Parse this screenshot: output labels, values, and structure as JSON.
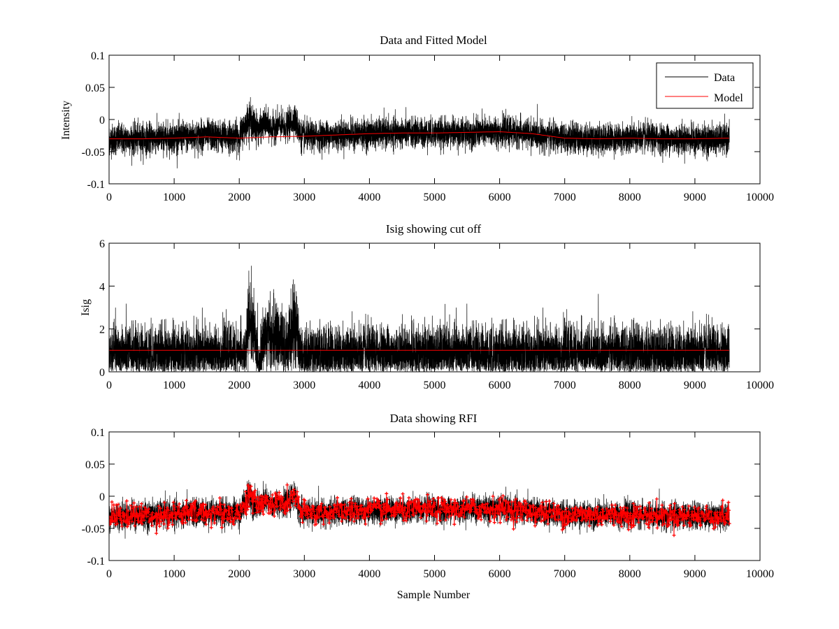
{
  "figure": {
    "background": "#ffffff",
    "colors": {
      "data": "#000000",
      "model": "#ff0000",
      "rfi": "#ff0000"
    }
  },
  "chart_data": [
    {
      "type": "line",
      "title": "Data and Fitted Model",
      "xlabel": "",
      "ylabel": "Intensity",
      "xlim": [
        0,
        10000
      ],
      "ylim": [
        -0.1,
        0.1
      ],
      "xticks": [
        0,
        1000,
        2000,
        3000,
        4000,
        5000,
        6000,
        7000,
        8000,
        9000,
        10000
      ],
      "yticks": [
        -0.1,
        -0.05,
        0,
        0.05,
        0.1
      ],
      "ytick_labels": [
        "-0.1",
        "-0.05",
        "0",
        "0.05",
        "0.1"
      ],
      "grid": false,
      "legend": {
        "position": "top-right",
        "entries": [
          "Data",
          "Model"
        ]
      },
      "series": [
        {
          "name": "Data",
          "color": "#000000",
          "style": "noisy-line",
          "x": [
            0,
            500,
            1000,
            1500,
            2000,
            2100,
            2150,
            2200,
            2300,
            2400,
            2500,
            2600,
            2700,
            2850,
            2950,
            3100,
            3500,
            4000,
            4500,
            5000,
            5500,
            6000,
            6300,
            6500,
            7000,
            7500,
            8000,
            8200,
            8500,
            9000,
            9530
          ],
          "values": [
            -0.031,
            -0.03,
            -0.028,
            -0.025,
            -0.027,
            -0.008,
            0.004,
            -0.006,
            -0.016,
            -0.005,
            -0.015,
            -0.008,
            -0.014,
            0.001,
            -0.026,
            -0.026,
            -0.024,
            -0.022,
            -0.021,
            -0.021,
            -0.021,
            -0.019,
            -0.02,
            -0.023,
            -0.029,
            -0.03,
            -0.029,
            -0.028,
            -0.03,
            -0.031,
            -0.031
          ],
          "spread": [
            0.016,
            0.016,
            0.016,
            0.016,
            0.016,
            0.016,
            0.018,
            0.018,
            0.015,
            0.015,
            0.015,
            0.015,
            0.015,
            0.016,
            0.016,
            0.015,
            0.015,
            0.015,
            0.015,
            0.015,
            0.015,
            0.015,
            0.015,
            0.015,
            0.015,
            0.015,
            0.015,
            0.015,
            0.015,
            0.015,
            0.015
          ],
          "n_samples": 9530
        },
        {
          "name": "Model",
          "color": "#ff0000",
          "style": "line",
          "x": [
            0,
            500,
            1000,
            1500,
            2000,
            2500,
            3000,
            3500,
            4000,
            4500,
            5000,
            5500,
            6000,
            6500,
            7000,
            7500,
            8000,
            8500,
            9000,
            9530
          ],
          "values": [
            -0.03,
            -0.03,
            -0.029,
            -0.027,
            -0.029,
            -0.027,
            -0.026,
            -0.024,
            -0.022,
            -0.021,
            -0.021,
            -0.02,
            -0.019,
            -0.022,
            -0.029,
            -0.03,
            -0.029,
            -0.03,
            -0.03,
            -0.029
          ]
        }
      ]
    },
    {
      "type": "line",
      "title": "Isig showing cut off",
      "xlabel": "",
      "ylabel": "Isig",
      "xlim": [
        0,
        10000
      ],
      "ylim": [
        0,
        6
      ],
      "xticks": [
        0,
        1000,
        2000,
        3000,
        4000,
        5000,
        6000,
        7000,
        8000,
        9000,
        10000
      ],
      "yticks": [
        0,
        2,
        4,
        6
      ],
      "ytick_labels": [
        "0",
        "2",
        "4",
        "6"
      ],
      "grid": false,
      "series": [
        {
          "color": "#000000",
          "style": "noisy-positive",
          "x": [
            0,
            500,
            1000,
            1500,
            2000,
            2100,
            2150,
            2200,
            2300,
            2400,
            2500,
            2600,
            2700,
            2850,
            2950,
            3100,
            4000,
            5000,
            6000,
            7000,
            8000,
            9000,
            9530
          ],
          "center": [
            0.85,
            0.85,
            0.85,
            0.85,
            0.85,
            0.85,
            2.6,
            2.3,
            0.4,
            1.8,
            1.3,
            1.6,
            1.0,
            2.2,
            0.8,
            0.85,
            0.85,
            0.85,
            0.85,
            0.85,
            0.85,
            0.85,
            0.85
          ],
          "spread": [
            0.65,
            0.65,
            0.65,
            0.65,
            0.65,
            0.65,
            1.0,
            1.0,
            0.5,
            0.9,
            0.9,
            0.9,
            0.8,
            0.9,
            0.65,
            0.65,
            0.65,
            0.65,
            0.65,
            0.65,
            0.65,
            0.65,
            0.65
          ],
          "n_samples": 9530
        },
        {
          "name": "cut off",
          "color": "#ff0000",
          "style": "line",
          "x": [
            0,
            9530
          ],
          "values": [
            1,
            1
          ]
        }
      ]
    },
    {
      "type": "line",
      "title": "Data showing RFI",
      "xlabel": "Sample Number",
      "ylabel": "",
      "xlim": [
        0,
        10000
      ],
      "ylim": [
        -0.1,
        0.1
      ],
      "xticks": [
        0,
        1000,
        2000,
        3000,
        4000,
        5000,
        6000,
        7000,
        8000,
        9000,
        10000
      ],
      "yticks": [
        -0.1,
        -0.05,
        0,
        0.05,
        0.1
      ],
      "ytick_labels": [
        "-0.1",
        "-0.05",
        "0",
        "0.05",
        "0.1"
      ],
      "grid": false,
      "series": [
        {
          "color": "#000000",
          "style": "noisy-line",
          "x": [
            0,
            500,
            1000,
            1500,
            2000,
            2100,
            2150,
            2200,
            2300,
            2400,
            2500,
            2600,
            2700,
            2850,
            2950,
            3100,
            4000,
            5000,
            6000,
            7000,
            8000,
            9000,
            9530
          ],
          "values": [
            -0.031,
            -0.03,
            -0.028,
            -0.025,
            -0.027,
            -0.008,
            0.004,
            -0.006,
            -0.016,
            -0.005,
            -0.015,
            -0.008,
            -0.014,
            0.001,
            -0.026,
            -0.026,
            -0.022,
            -0.021,
            -0.019,
            -0.029,
            -0.029,
            -0.031,
            -0.031
          ],
          "spread": [
            0.014,
            0.014,
            0.014,
            0.014,
            0.014,
            0.014,
            0.016,
            0.016,
            0.013,
            0.013,
            0.013,
            0.013,
            0.013,
            0.014,
            0.014,
            0.013,
            0.013,
            0.013,
            0.013,
            0.013,
            0.013,
            0.013,
            0.013
          ],
          "n_samples": 9530
        },
        {
          "color": "#ff0000",
          "style": "marker-plus-line",
          "x": [
            0,
            500,
            1000,
            1500,
            2000,
            2100,
            2150,
            2200,
            2300,
            2400,
            2500,
            2600,
            2700,
            2850,
            2950,
            3100,
            4000,
            5000,
            6000,
            7000,
            8000,
            9000,
            9530
          ],
          "values": [
            -0.031,
            -0.03,
            -0.028,
            -0.025,
            -0.027,
            -0.008,
            0.004,
            -0.006,
            -0.016,
            -0.005,
            -0.015,
            -0.008,
            -0.014,
            0.001,
            -0.026,
            -0.026,
            -0.022,
            -0.021,
            -0.019,
            -0.029,
            -0.029,
            -0.031,
            -0.031
          ],
          "spread": [
            0.013,
            0.013,
            0.013,
            0.013,
            0.013,
            0.013,
            0.015,
            0.015,
            0.012,
            0.012,
            0.012,
            0.012,
            0.012,
            0.013,
            0.013,
            0.012,
            0.012,
            0.012,
            0.012,
            0.012,
            0.012,
            0.012,
            0.012
          ],
          "n_samples": 1300
        }
      ]
    }
  ]
}
